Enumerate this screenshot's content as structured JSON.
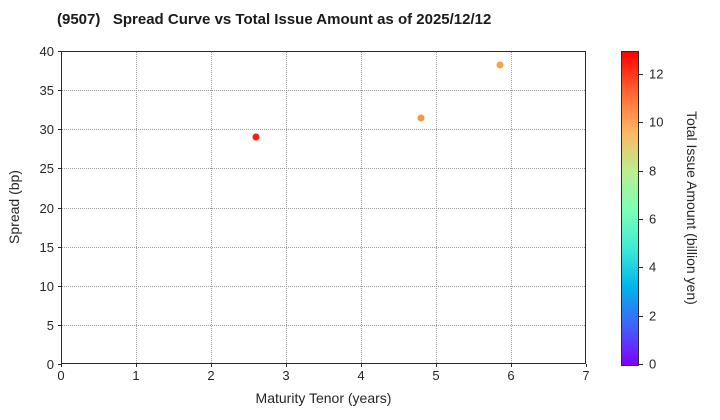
{
  "chart_data": {
    "type": "scatter",
    "title": "(9507)   Spread Curve vs Total Issue Amount as of 2025/12/12",
    "xlabel": "Maturity Tenor (years)",
    "ylabel": "Spread (bp)",
    "xlim": [
      0,
      7
    ],
    "ylim": [
      0,
      40
    ],
    "xticks": [
      0,
      1,
      2,
      3,
      4,
      5,
      6,
      7
    ],
    "yticks": [
      0,
      5,
      10,
      15,
      20,
      25,
      30,
      35,
      40
    ],
    "grid": true,
    "grid_style": "dotted",
    "points": [
      {
        "x": 2.6,
        "y": 29.0,
        "value": 12.9,
        "color": "#f81e15"
      },
      {
        "x": 4.8,
        "y": 31.5,
        "value": 10.4,
        "color": "#f99740"
      },
      {
        "x": 5.85,
        "y": 38.2,
        "value": 10.1,
        "color": "#f9a04b"
      }
    ],
    "colorbar": {
      "label": "Total Issue Amount (billion yen)",
      "ticks": [
        0,
        2,
        4,
        6,
        8,
        10,
        12
      ],
      "vmin": 0,
      "vmax": 12.95,
      "colormap": "rainbow",
      "gradient_bottom_to_top": [
        "#8000FF",
        "#4062FA",
        "#00B4EB",
        "#40ECD4",
        "#80FFB4",
        "#BFEC8E",
        "#FFB462",
        "#FF6232",
        "#FF0000"
      ]
    }
  }
}
